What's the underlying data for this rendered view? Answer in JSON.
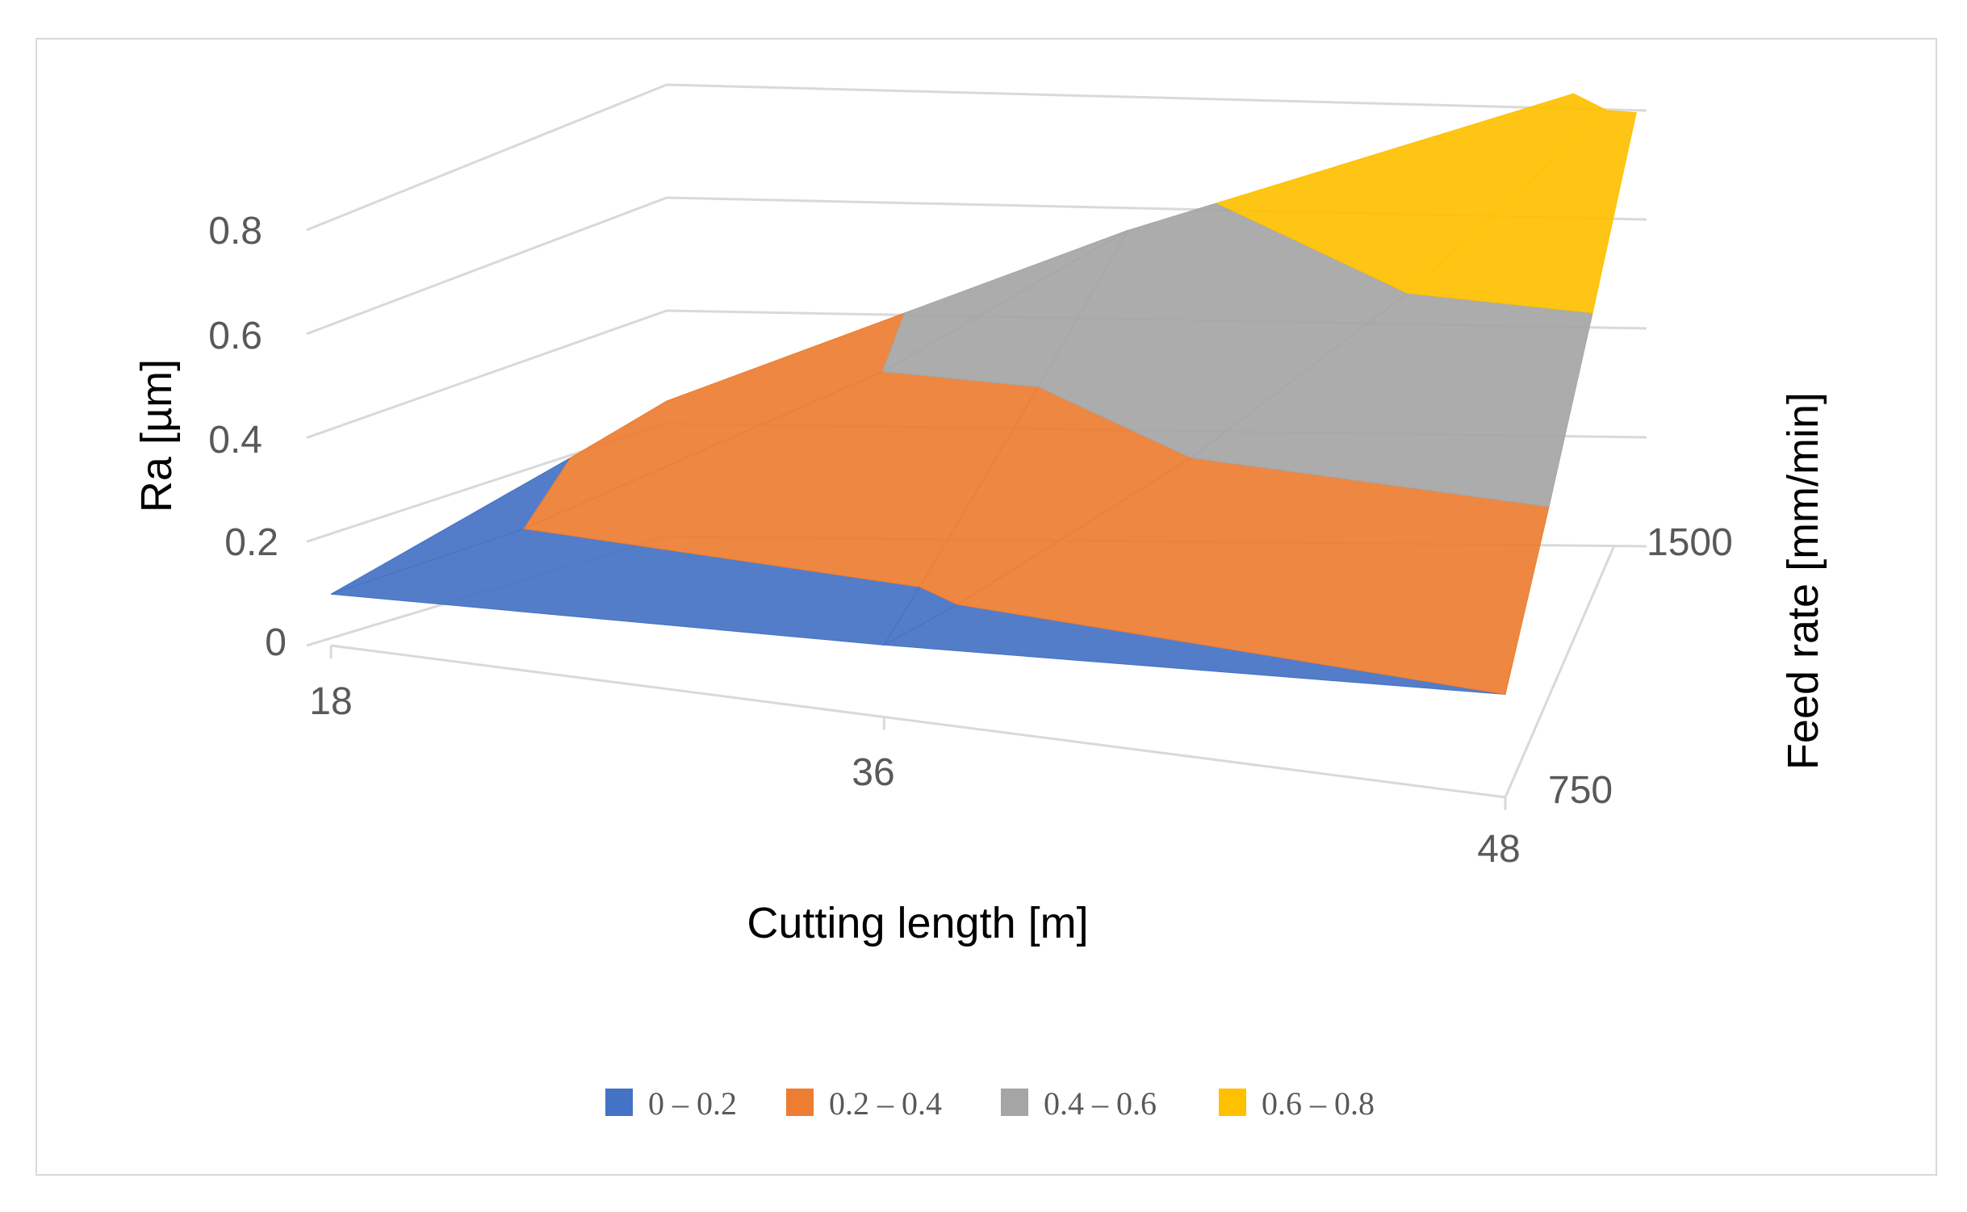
{
  "chart_data": {
    "type": "surface",
    "title": "",
    "xlabel": "Cutting length [m]",
    "ylabel": "Ra [µm]",
    "zlabel": "Feed rate [mm/min]",
    "x_ticks": [
      "18",
      "36",
      "48"
    ],
    "y_ticks": [
      "0",
      "0.2",
      "0.4",
      "0.6",
      "0.8"
    ],
    "z_ticks": [
      "750",
      "1500"
    ],
    "zlim": [
      0,
      0.8
    ],
    "grid": true,
    "legend_position": "bottom",
    "series": [
      {
        "name": "0 – 0.2",
        "range": [
          0,
          0.2
        ],
        "color": "#4472C4"
      },
      {
        "name": "0.2 – 0.4",
        "range": [
          0.2,
          0.4
        ],
        "color": "#ED7D31"
      },
      {
        "name": "0.4 – 0.6",
        "range": [
          0.4,
          0.6
        ],
        "color": "#A5A5A5"
      },
      {
        "name": "0.6 – 0.8",
        "range": [
          0.6,
          0.8
        ],
        "color": "#FFC000"
      }
    ],
    "x": [
      18,
      36,
      48
    ],
    "y": [
      750,
      1500
    ],
    "values": [
      [
        0.1,
        0.24
      ],
      [
        0.14,
        0.55
      ],
      [
        0.2,
        0.84
      ]
    ]
  }
}
